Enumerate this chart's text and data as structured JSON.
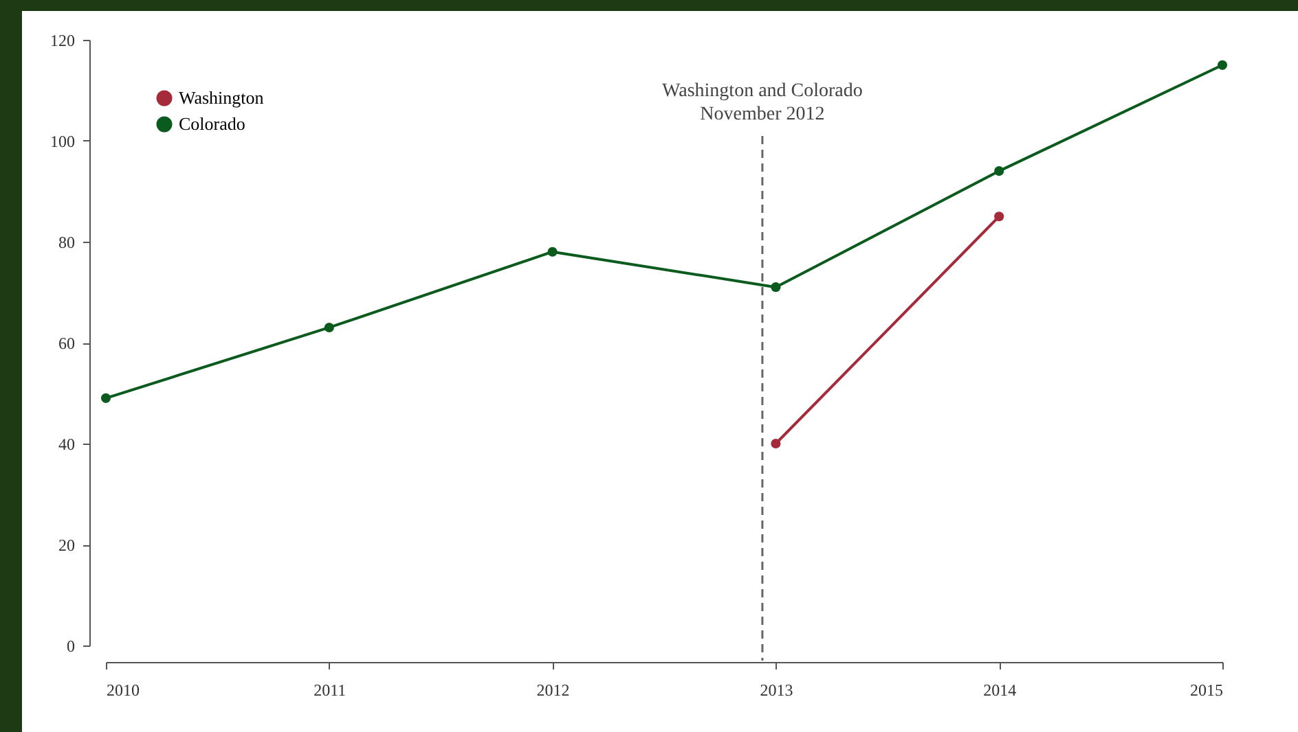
{
  "chart_data": {
    "type": "line",
    "x": [
      2010,
      2011,
      2012,
      2013,
      2014,
      2015
    ],
    "series": [
      {
        "name": "Washington",
        "color": "#a52a3a",
        "values": [
          null,
          null,
          null,
          40,
          85,
          null
        ]
      },
      {
        "name": "Colorado",
        "color": "#0b5a1e",
        "values": [
          49,
          63,
          78,
          71,
          94,
          115
        ]
      }
    ],
    "xlim": [
      2010,
      2015
    ],
    "xticks": [
      2010,
      2011,
      2012,
      2013,
      2014,
      2015
    ],
    "ylim": [
      0,
      120
    ],
    "yticks": [
      0,
      20,
      40,
      60,
      80,
      100,
      120
    ],
    "ref_lines": [
      {
        "axis": "x",
        "value": 2012.94,
        "label": "Washington and Colorado\nNovember 2012",
        "color": "#666666",
        "line_style": "dashed"
      }
    ],
    "legend": "top left",
    "marker": "circle",
    "line_style": "solid",
    "grid": false
  }
}
